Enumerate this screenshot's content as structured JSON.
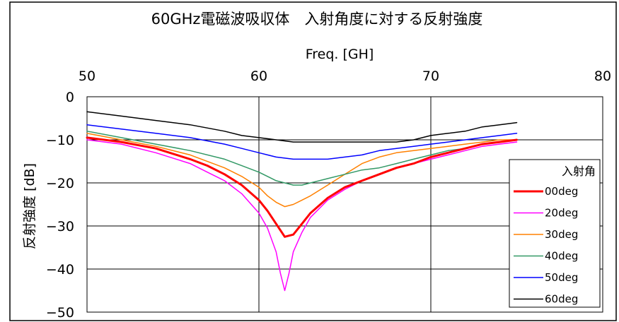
{
  "chart_data": {
    "type": "line",
    "title": "60GHz電磁波吸収体　入射角度に対する反射強度",
    "xlabel": "Freq. [GH]",
    "ylabel": "反射強度 [dB]",
    "xlim": [
      50,
      80
    ],
    "ylim": [
      -50,
      0
    ],
    "x_ticks": [
      50,
      60,
      70,
      80
    ],
    "y_ticks": [
      0,
      -10,
      -20,
      -30,
      -40,
      -50
    ],
    "x_axis_position": "top",
    "grid": true,
    "legend": {
      "title": "入射角",
      "position": "bottom-right"
    },
    "series": [
      {
        "name": "00deg",
        "color": "#ff0000",
        "width": 3,
        "x": [
          50,
          52,
          54,
          56,
          57,
          58,
          59,
          60,
          60.5,
          61,
          61.5,
          62,
          62.5,
          63,
          64,
          65,
          66,
          67,
          68,
          69,
          70,
          71,
          72,
          73,
          74,
          75
        ],
        "y": [
          -9.5,
          -10.5,
          -12,
          -14.5,
          -16,
          -18,
          -20.5,
          -24,
          -26.5,
          -29.5,
          -32.5,
          -32,
          -29.5,
          -27,
          -23.5,
          -21,
          -19.5,
          -18,
          -16.5,
          -15.5,
          -14,
          -13,
          -12,
          -11,
          -10.5,
          -10
        ]
      },
      {
        "name": "20deg",
        "color": "#ff00ff",
        "width": 1.5,
        "x": [
          50,
          52,
          54,
          56,
          57,
          58,
          59,
          60,
          60.5,
          61,
          61.25,
          61.5,
          61.75,
          62,
          62.5,
          63,
          64,
          65,
          66,
          67,
          68,
          69,
          70,
          71,
          72,
          73,
          74,
          75
        ],
        "y": [
          -10,
          -11,
          -13,
          -15.5,
          -17.5,
          -19.5,
          -22.5,
          -27,
          -30.5,
          -36,
          -41,
          -45,
          -41,
          -36,
          -31.5,
          -28,
          -24,
          -21.5,
          -19.5,
          -18,
          -16.5,
          -15.5,
          -14.5,
          -13.5,
          -12.5,
          -11.5,
          -11,
          -10.5
        ]
      },
      {
        "name": "30deg",
        "color": "#ff8000",
        "width": 1.5,
        "x": [
          50,
          52,
          54,
          56,
          58,
          59,
          60,
          60.5,
          61,
          61.5,
          62,
          62.5,
          63,
          64,
          65,
          66,
          67,
          68,
          69,
          70,
          71,
          72,
          73,
          74,
          75
        ],
        "y": [
          -8.5,
          -10,
          -11.5,
          -13.5,
          -16.5,
          -18.5,
          -21,
          -23,
          -24.5,
          -25.5,
          -25,
          -24,
          -23,
          -20.5,
          -18,
          -15.5,
          -14,
          -13,
          -12.5,
          -12,
          -11.5,
          -11,
          -10.5,
          -10,
          -10
        ]
      },
      {
        "name": "40deg",
        "color": "#339966",
        "width": 1.5,
        "x": [
          50,
          52,
          54,
          56,
          58,
          59,
          60,
          61,
          62,
          62.5,
          63,
          64,
          65,
          66,
          67,
          68,
          69,
          70,
          71,
          72,
          73,
          74,
          75
        ],
        "y": [
          -8,
          -9.5,
          -11,
          -12.5,
          -14.5,
          -16,
          -17.5,
          -19.5,
          -20.5,
          -20.5,
          -20,
          -19,
          -18,
          -17,
          -16.5,
          -15.5,
          -14.5,
          -13.5,
          -12.5,
          -12,
          -11,
          -10.5,
          -10
        ]
      },
      {
        "name": "50deg",
        "color": "#0000ff",
        "width": 1.5,
        "x": [
          50,
          52,
          54,
          56,
          58,
          59,
          60,
          61,
          62,
          63,
          64,
          65,
          66,
          67,
          68,
          69,
          70,
          71,
          72,
          73,
          74,
          75
        ],
        "y": [
          -6.5,
          -7.5,
          -8.5,
          -9.5,
          -11,
          -12,
          -13,
          -14,
          -14.5,
          -14.5,
          -14.5,
          -14,
          -13.5,
          -12.5,
          -12,
          -11.5,
          -11,
          -10.5,
          -10,
          -9.5,
          -9,
          -8.5
        ]
      },
      {
        "name": "60deg",
        "color": "#000000",
        "width": 1.5,
        "x": [
          50,
          52,
          54,
          56,
          58,
          59,
          60,
          61,
          62,
          63,
          64,
          65,
          66,
          67,
          68,
          69,
          70,
          71,
          72,
          73,
          74,
          75
        ],
        "y": [
          -3.5,
          -4.5,
          -5.5,
          -6.5,
          -8,
          -9,
          -9.5,
          -10,
          -10.5,
          -10.5,
          -10.5,
          -10.5,
          -10.5,
          -10.5,
          -10.5,
          -10,
          -9,
          -8.5,
          -8,
          -7,
          -6.5,
          -6
        ]
      }
    ]
  }
}
